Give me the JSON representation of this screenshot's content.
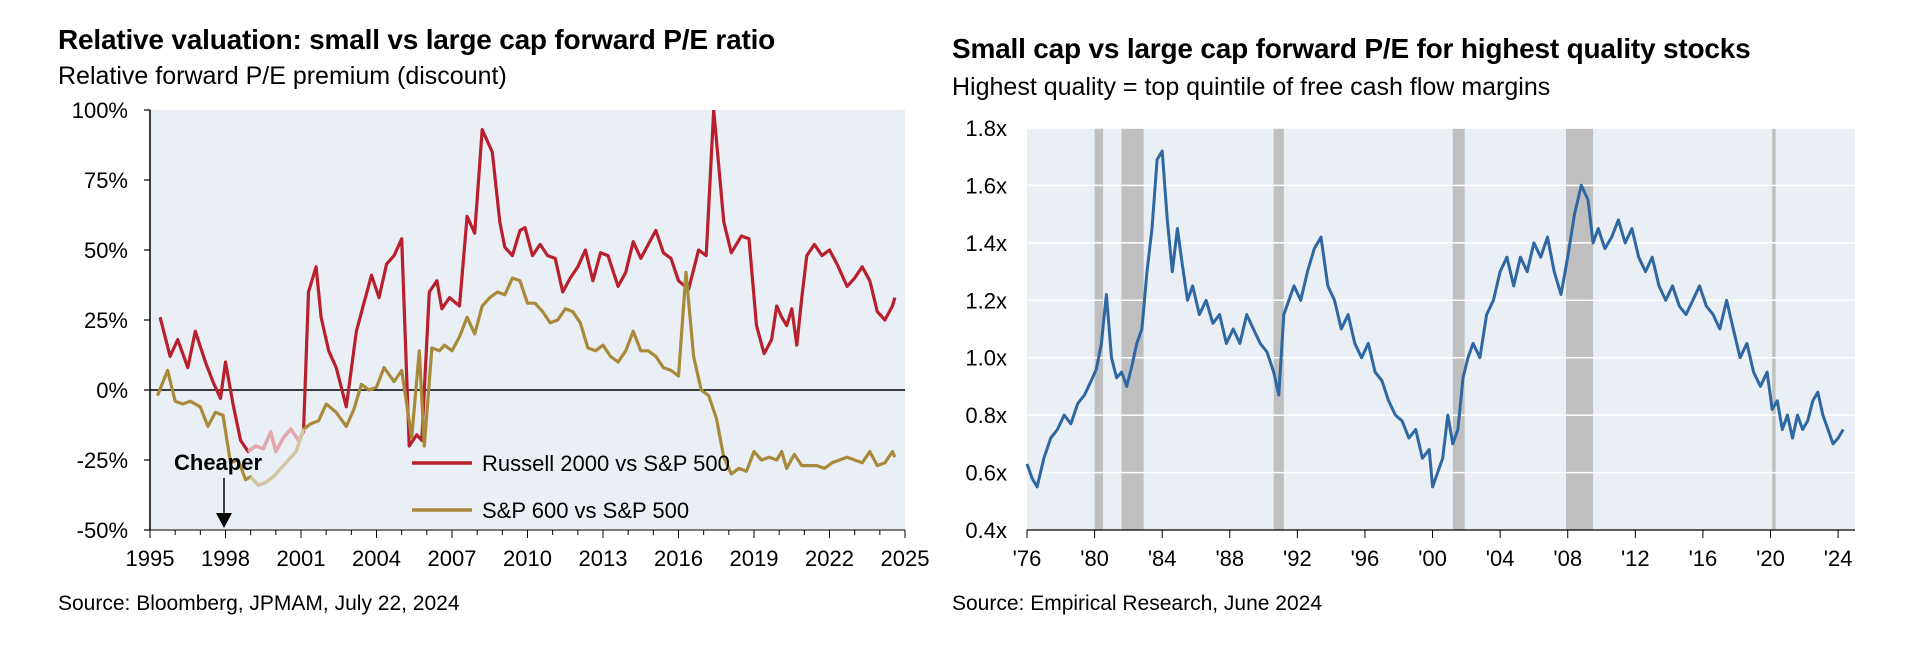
{
  "left": {
    "title": "Relative valuation: small vs large cap forward P/E ratio",
    "subtitle": "Relative forward P/E premium (discount)",
    "source": "Source: Bloomberg, JPMAM, July 22, 2024",
    "annotation": "Cheaper",
    "colors": {
      "russell": "#b8202e",
      "sp600": "#a88a3a",
      "plot_bg": "#e9eff4",
      "faded_russell": "#e3a8ae",
      "faded_sp600": "#d2c6a4"
    }
  },
  "right": {
    "title": "Small cap vs large cap forward P/E for highest quality stocks",
    "subtitle": "Highest quality = top quintile of free cash flow margins",
    "source": "Source: Empirical Research, June 2024",
    "colors": {
      "line": "#2e67a1",
      "plot_bg": "#e9eff4",
      "recession": "#bfbfbf"
    }
  },
  "chart_data": [
    {
      "type": "line",
      "title": "Relative valuation: small vs large cap forward P/E ratio",
      "subtitle": "Relative forward P/E premium (discount)",
      "xlabel": "",
      "ylabel": "",
      "xlim": [
        1995,
        2025
      ],
      "ylim": [
        -50,
        100
      ],
      "x_ticks": [
        1995,
        1998,
        2001,
        2004,
        2007,
        2010,
        2013,
        2016,
        2019,
        2022,
        2025
      ],
      "x_tick_labels": [
        "1995",
        "1998",
        "2001",
        "2004",
        "2007",
        "2010",
        "2013",
        "2016",
        "2019",
        "2022",
        "2025"
      ],
      "y_ticks": [
        -50,
        -25,
        0,
        25,
        50,
        75,
        100
      ],
      "y_tick_labels": [
        "-50%",
        "-25%",
        "0%",
        "25%",
        "50%",
        "75%",
        "100%"
      ],
      "grid": false,
      "legend": "bottom-center",
      "series": [
        {
          "name": "Russell 2000 vs S&P 500",
          "x": [
            1995.4,
            1995.8,
            1996.1,
            1996.5,
            1996.8,
            1997.2,
            1997.5,
            1997.8,
            1998.0,
            1998.3,
            1998.6,
            1998.9,
            1999.2,
            1999.5,
            1999.8,
            2000.0,
            2000.3,
            2000.6,
            2000.9,
            2001.1,
            2001.3,
            2001.6,
            2001.8,
            2002.1,
            2002.4,
            2002.8,
            2003.2,
            2003.5,
            2003.8,
            2004.1,
            2004.4,
            2004.7,
            2005.0,
            2005.3,
            2005.6,
            2005.8,
            2006.1,
            2006.4,
            2006.6,
            2006.9,
            2007.3,
            2007.6,
            2007.9,
            2008.2,
            2008.6,
            2008.9,
            2009.1,
            2009.4,
            2009.7,
            2009.9,
            2010.2,
            2010.5,
            2010.8,
            2011.1,
            2011.4,
            2011.7,
            2012.0,
            2012.3,
            2012.6,
            2012.9,
            2013.2,
            2013.6,
            2013.9,
            2014.2,
            2014.5,
            2014.8,
            2015.1,
            2015.4,
            2015.7,
            2016.0,
            2016.4,
            2016.8,
            2017.1,
            2017.4,
            2017.8,
            2018.1,
            2018.5,
            2018.8,
            2019.1,
            2019.4,
            2019.7,
            2019.9,
            2020.1,
            2020.3,
            2020.5,
            2020.7,
            2020.9,
            2021.1,
            2021.4,
            2021.7,
            2022.0,
            2022.3,
            2022.7,
            2023.0,
            2023.3,
            2023.6,
            2023.9,
            2024.2,
            2024.5,
            2024.6
          ],
          "values": [
            26,
            12,
            18,
            8,
            21,
            10,
            3,
            -3,
            10,
            -5,
            -18,
            -22,
            -20,
            -21,
            -15,
            -22,
            -17,
            -14,
            -18,
            -15,
            35,
            44,
            26,
            14,
            8,
            -6,
            21,
            31,
            41,
            33,
            45,
            48,
            54,
            -20,
            -16,
            -18,
            35,
            39,
            29,
            33,
            30,
            62,
            56,
            93,
            85,
            60,
            51,
            48,
            57,
            58,
            48,
            52,
            48,
            47,
            35,
            40,
            44,
            50,
            39,
            49,
            48,
            37,
            42,
            53,
            47,
            52,
            57,
            49,
            47,
            39,
            36,
            50,
            48,
            100,
            60,
            49,
            55,
            54,
            23,
            13,
            18,
            30,
            26,
            23,
            29,
            16,
            33,
            48,
            52,
            48,
            50,
            45,
            37,
            40,
            44,
            39,
            28,
            25,
            30,
            33
          ]
        },
        {
          "name": "S&P 600 vs S&P 500",
          "x": [
            1995.3,
            1995.7,
            1996.0,
            1996.3,
            1996.6,
            1997.0,
            1997.3,
            1997.6,
            1997.9,
            1998.2,
            1998.5,
            1998.8,
            1999.0,
            1999.3,
            1999.6,
            1999.9,
            2000.2,
            2000.5,
            2000.8,
            2001.1,
            2001.4,
            2001.7,
            2002.0,
            2002.4,
            2002.8,
            2003.1,
            2003.4,
            2003.7,
            2004.0,
            2004.3,
            2004.7,
            2005.0,
            2005.4,
            2005.7,
            2005.9,
            2006.2,
            2006.5,
            2006.7,
            2007.0,
            2007.3,
            2007.6,
            2007.9,
            2008.2,
            2008.5,
            2008.8,
            2009.1,
            2009.4,
            2009.7,
            2010.0,
            2010.3,
            2010.6,
            2010.9,
            2011.2,
            2011.5,
            2011.8,
            2012.1,
            2012.4,
            2012.7,
            2013.0,
            2013.3,
            2013.6,
            2013.9,
            2014.2,
            2014.5,
            2014.8,
            2015.1,
            2015.4,
            2015.7,
            2016.0,
            2016.3,
            2016.6,
            2016.9,
            2017.2,
            2017.5,
            2017.8,
            2018.1,
            2018.4,
            2018.7,
            2019.0,
            2019.3,
            2019.6,
            2019.9,
            2020.1,
            2020.3,
            2020.6,
            2020.9,
            2021.2,
            2021.5,
            2021.8,
            2022.1,
            2022.4,
            2022.7,
            2023.0,
            2023.3,
            2023.6,
            2023.9,
            2024.2,
            2024.5,
            2024.6
          ],
          "values": [
            -2,
            7,
            -4,
            -5,
            -4,
            -6,
            -13,
            -8,
            -9,
            -26,
            -25,
            -32,
            -31,
            -34,
            -33,
            -31,
            -28,
            -25,
            -22,
            -14,
            -12,
            -11,
            -5,
            -8,
            -13,
            -7,
            2,
            0,
            1,
            8,
            3,
            7,
            -17,
            14,
            -20,
            15,
            14,
            16,
            14,
            19,
            26,
            20,
            30,
            33,
            35,
            34,
            40,
            39,
            31,
            31,
            28,
            24,
            25,
            29,
            28,
            24,
            15,
            14,
            16,
            12,
            10,
            14,
            21,
            14,
            14,
            12,
            8,
            7,
            5,
            42,
            12,
            0,
            -2,
            -10,
            -24,
            -30,
            -28,
            -29,
            -22,
            -25,
            -24,
            -25,
            -22,
            -28,
            -23,
            -27,
            -27,
            -27,
            -28,
            -26,
            -25,
            -24,
            -25,
            -26,
            -22,
            -27,
            -26,
            -22,
            -24
          ]
        }
      ]
    },
    {
      "type": "line",
      "title": "Small cap vs large cap forward P/E for highest quality stocks",
      "subtitle": "Highest quality = top quintile of free cash flow margins",
      "xlabel": "",
      "ylabel": "",
      "xlim": [
        1976,
        2025
      ],
      "ylim": [
        0.4,
        1.8
      ],
      "x_ticks": [
        1976,
        1980,
        1984,
        1988,
        1992,
        1996,
        2000,
        2004,
        2008,
        2012,
        2016,
        2020,
        2024
      ],
      "x_tick_labels": [
        "'76",
        "'80",
        "'84",
        "'88",
        "'92",
        "'96",
        "'00",
        "'04",
        "'08",
        "'12",
        "'16",
        "'20",
        "'24"
      ],
      "y_ticks": [
        0.4,
        0.6,
        0.8,
        1.0,
        1.2,
        1.4,
        1.6,
        1.8
      ],
      "y_tick_labels": [
        "0.4x",
        "0.6x",
        "0.8x",
        "1.0x",
        "1.2x",
        "1.4x",
        "1.6x",
        "1.8x"
      ],
      "grid": true,
      "recessions": [
        [
          1980.0,
          1980.5
        ],
        [
          1981.6,
          1982.9
        ],
        [
          1990.6,
          1991.2
        ],
        [
          2001.2,
          2001.9
        ],
        [
          2007.9,
          2009.5
        ],
        [
          2020.1,
          2020.3
        ]
      ],
      "series": [
        {
          "name": "",
          "x": [
            1976.0,
            1976.3,
            1976.6,
            1977.0,
            1977.4,
            1977.8,
            1978.2,
            1978.6,
            1979.0,
            1979.4,
            1979.8,
            1980.1,
            1980.4,
            1980.7,
            1981.0,
            1981.3,
            1981.6,
            1981.9,
            1982.2,
            1982.5,
            1982.8,
            1983.1,
            1983.4,
            1983.7,
            1984.0,
            1984.3,
            1984.6,
            1984.9,
            1985.2,
            1985.5,
            1985.8,
            1986.2,
            1986.6,
            1987.0,
            1987.4,
            1987.8,
            1988.2,
            1988.6,
            1989.0,
            1989.4,
            1989.8,
            1990.2,
            1990.6,
            1990.9,
            1991.2,
            1991.5,
            1991.8,
            1992.2,
            1992.6,
            1993.0,
            1993.4,
            1993.8,
            1994.2,
            1994.6,
            1995.0,
            1995.4,
            1995.8,
            1996.2,
            1996.6,
            1997.0,
            1997.4,
            1997.8,
            1998.2,
            1998.6,
            1999.0,
            1999.4,
            1999.8,
            2000.0,
            2000.3,
            2000.6,
            2000.9,
            2001.2,
            2001.5,
            2001.8,
            2002.1,
            2002.4,
            2002.8,
            2003.2,
            2003.6,
            2004.0,
            2004.4,
            2004.8,
            2005.2,
            2005.6,
            2006.0,
            2006.4,
            2006.8,
            2007.2,
            2007.6,
            2008.0,
            2008.4,
            2008.8,
            2009.2,
            2009.5,
            2009.8,
            2010.2,
            2010.6,
            2011.0,
            2011.4,
            2011.8,
            2012.2,
            2012.6,
            2013.0,
            2013.4,
            2013.8,
            2014.2,
            2014.6,
            2015.0,
            2015.4,
            2015.8,
            2016.2,
            2016.6,
            2017.0,
            2017.4,
            2017.8,
            2018.2,
            2018.6,
            2019.0,
            2019.4,
            2019.8,
            2020.1,
            2020.4,
            2020.7,
            2021.0,
            2021.3,
            2021.6,
            2021.9,
            2022.2,
            2022.5,
            2022.8,
            2023.1,
            2023.4,
            2023.7,
            2024.0,
            2024.3
          ],
          "values": [
            0.63,
            0.58,
            0.55,
            0.65,
            0.72,
            0.75,
            0.8,
            0.77,
            0.84,
            0.87,
            0.92,
            0.96,
            1.05,
            1.22,
            1.0,
            0.93,
            0.95,
            0.9,
            0.97,
            1.05,
            1.1,
            1.3,
            1.45,
            1.69,
            1.72,
            1.48,
            1.3,
            1.45,
            1.32,
            1.2,
            1.25,
            1.15,
            1.2,
            1.12,
            1.15,
            1.05,
            1.1,
            1.05,
            1.15,
            1.1,
            1.05,
            1.02,
            0.95,
            0.87,
            1.15,
            1.2,
            1.25,
            1.2,
            1.3,
            1.38,
            1.42,
            1.25,
            1.2,
            1.1,
            1.15,
            1.05,
            1.0,
            1.05,
            0.95,
            0.92,
            0.85,
            0.8,
            0.78,
            0.72,
            0.75,
            0.65,
            0.68,
            0.55,
            0.6,
            0.65,
            0.8,
            0.7,
            0.75,
            0.93,
            1.0,
            1.05,
            1.0,
            1.15,
            1.2,
            1.3,
            1.35,
            1.25,
            1.35,
            1.3,
            1.4,
            1.35,
            1.42,
            1.3,
            1.22,
            1.35,
            1.5,
            1.6,
            1.55,
            1.4,
            1.45,
            1.38,
            1.42,
            1.48,
            1.4,
            1.45,
            1.35,
            1.3,
            1.35,
            1.25,
            1.2,
            1.25,
            1.18,
            1.15,
            1.2,
            1.25,
            1.18,
            1.15,
            1.1,
            1.2,
            1.1,
            1.0,
            1.05,
            0.95,
            0.9,
            0.95,
            0.82,
            0.85,
            0.75,
            0.8,
            0.72,
            0.8,
            0.75,
            0.78,
            0.85,
            0.88,
            0.8,
            0.75,
            0.7,
            0.72,
            0.75
          ]
        }
      ]
    }
  ]
}
